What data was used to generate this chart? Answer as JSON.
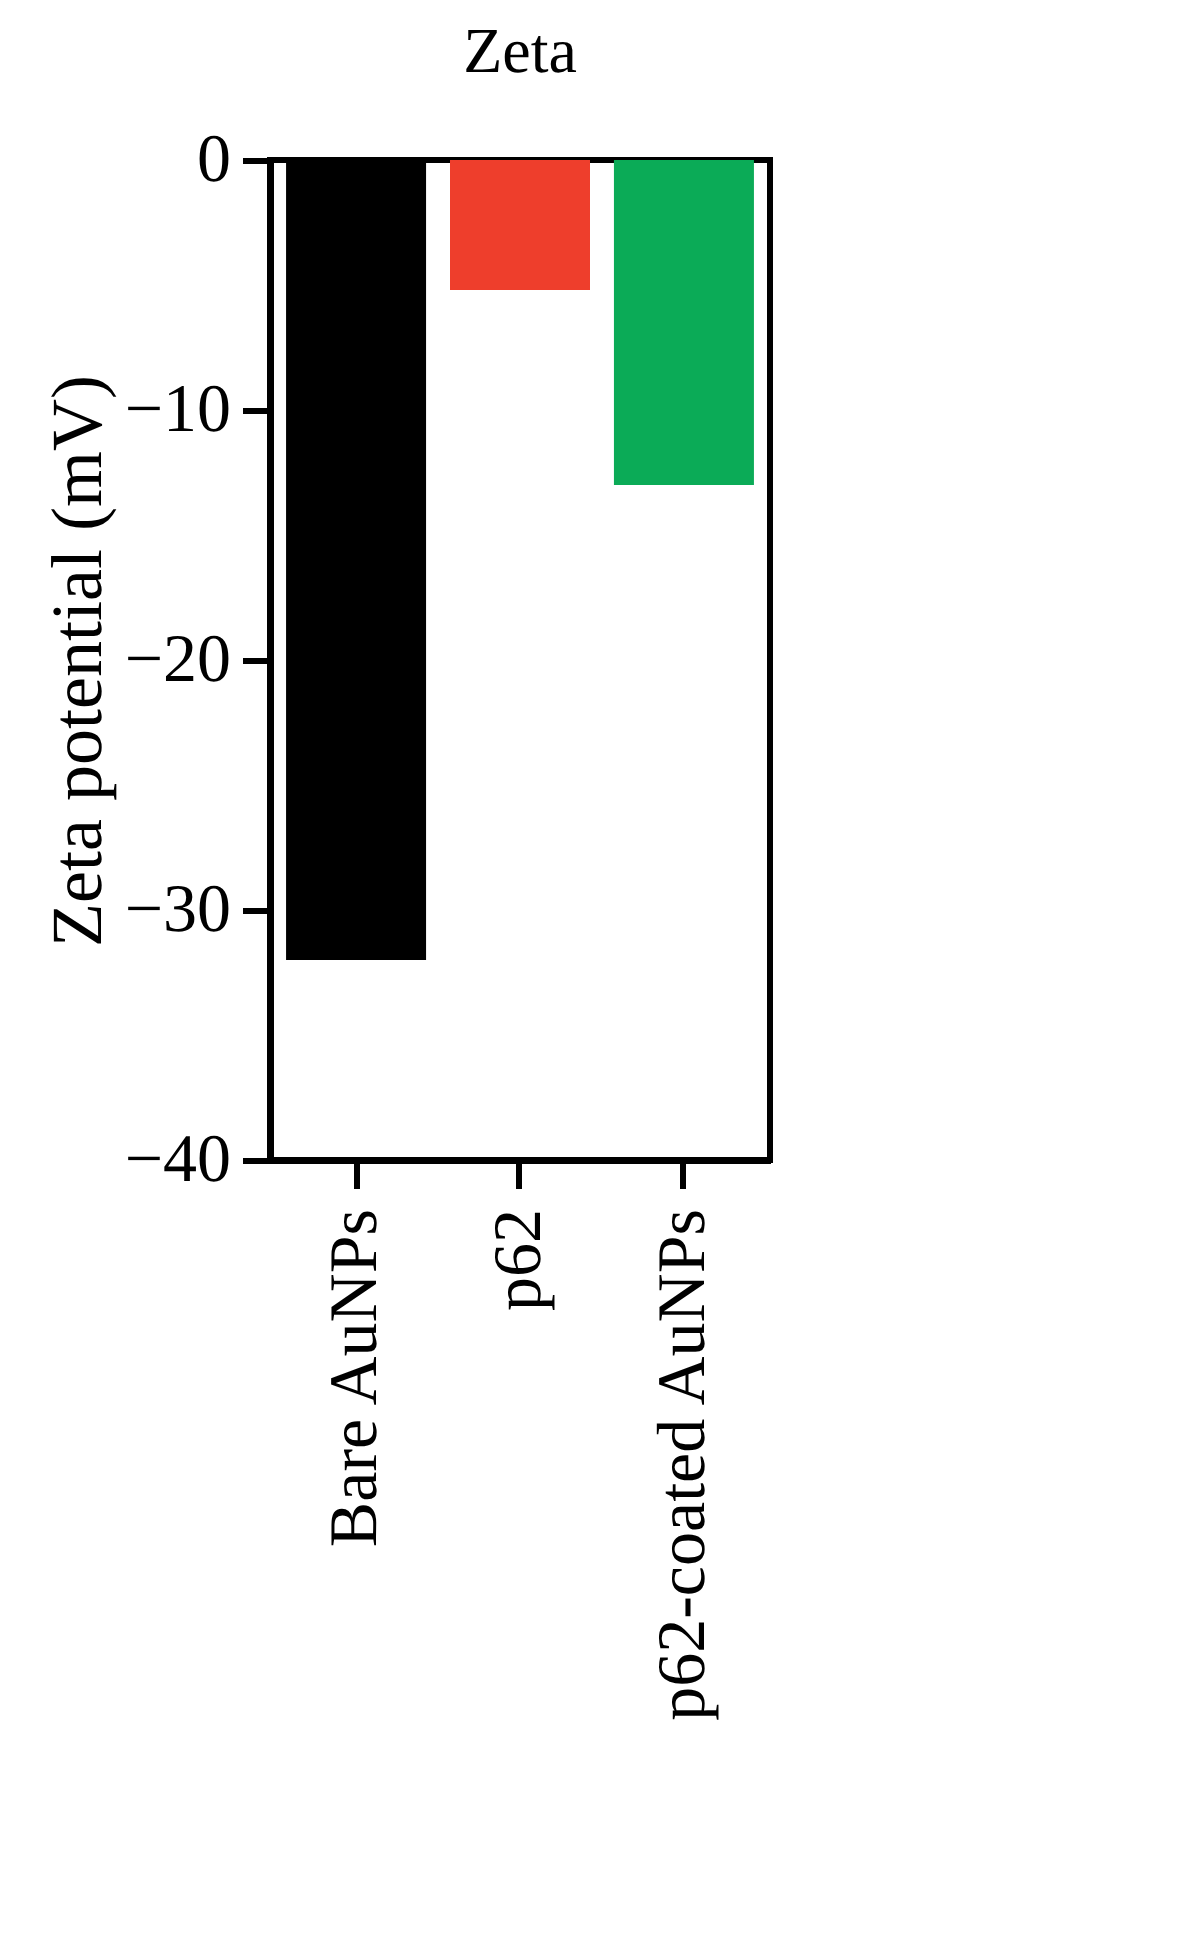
{
  "chart_data": {
    "type": "bar",
    "title": "Zeta",
    "ylabel": "Zeta potential (mV)",
    "categories": [
      "Bare AuNPs",
      "p62",
      "p62-coated AuNPs"
    ],
    "values": [
      -32,
      -5.2,
      -13
    ],
    "colors": [
      "#000000",
      "#ee3e2c",
      "#0bab57"
    ],
    "ylim": [
      -40,
      0
    ],
    "yticks": [
      {
        "value": -40,
        "label": "−40"
      },
      {
        "value": -30,
        "label": "−30"
      },
      {
        "value": -20,
        "label": "−20"
      },
      {
        "value": -10,
        "label": "−10"
      },
      0
    ],
    "grid": false,
    "legend": false
  }
}
